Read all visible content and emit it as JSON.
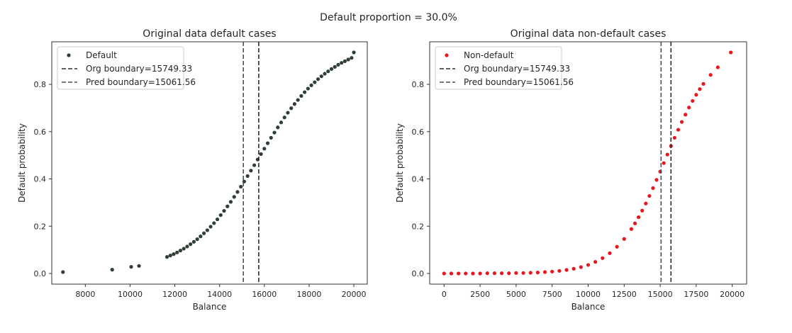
{
  "suptitle": "Default proportion = 30.0%",
  "chart_data": [
    {
      "type": "scatter",
      "title": "Original data default cases",
      "xlabel": "Balance",
      "ylabel": "Default probability",
      "xlim": [
        6500,
        20600
      ],
      "ylim": [
        -0.045,
        0.98
      ],
      "xticks": [
        8000,
        10000,
        12000,
        14000,
        16000,
        18000,
        20000
      ],
      "yticks": [
        0.0,
        0.2,
        0.4,
        0.6,
        0.8
      ],
      "grid": false,
      "legend_position": "top-left",
      "legend": [
        {
          "label": "Default",
          "kind": "marker"
        },
        {
          "label": "Org boundary=15749.33",
          "kind": "dashed-line"
        },
        {
          "label": "Pred boundary=15061.56",
          "kind": "dashed-line"
        }
      ],
      "series": [
        {
          "name": "Default",
          "color": "#2f3f34",
          "x": [
            7000,
            9200,
            10050,
            10400,
            11650,
            11800,
            11950,
            12100,
            12250,
            12400,
            12550,
            12700,
            12850,
            13000,
            13150,
            13300,
            13450,
            13600,
            13750,
            13900,
            14050,
            14200,
            14350,
            14500,
            14650,
            14800,
            14950,
            15100,
            15250,
            15400,
            15550,
            15700,
            15850,
            16000,
            16150,
            16300,
            16450,
            16600,
            16750,
            16900,
            17050,
            17200,
            17350,
            17500,
            17650,
            17800,
            17950,
            18100,
            18250,
            18400,
            18550,
            18700,
            18850,
            19000,
            19150,
            19300,
            19450,
            19600,
            19750,
            19900,
            20000
          ],
          "y": [
            0.006,
            0.016,
            0.028,
            0.032,
            0.07,
            0.076,
            0.082,
            0.089,
            0.097,
            0.105,
            0.114,
            0.124,
            0.134,
            0.145,
            0.157,
            0.17,
            0.183,
            0.198,
            0.213,
            0.229,
            0.247,
            0.265,
            0.284,
            0.303,
            0.324,
            0.345,
            0.367,
            0.389,
            0.412,
            0.435,
            0.458,
            0.482,
            0.505,
            0.528,
            0.551,
            0.574,
            0.596,
            0.618,
            0.639,
            0.66,
            0.68,
            0.699,
            0.717,
            0.734,
            0.751,
            0.767,
            0.782,
            0.796,
            0.809,
            0.822,
            0.834,
            0.845,
            0.855,
            0.865,
            0.874,
            0.883,
            0.891,
            0.898,
            0.905,
            0.912,
            0.935
          ]
        }
      ],
      "vlines": [
        {
          "name": "Org boundary=15749.33",
          "x": 15749.33,
          "color": "#2b2b2b"
        },
        {
          "name": "Pred boundary=15061.56",
          "x": 15061.56,
          "color": "#4a4f5c"
        }
      ]
    },
    {
      "type": "scatter",
      "title": "Original data non-default cases",
      "xlabel": "Balance",
      "ylabel": "Default probability",
      "xlim": [
        -1000,
        21000
      ],
      "ylim": [
        -0.045,
        0.98
      ],
      "xticks": [
        0,
        2500,
        5000,
        7500,
        10000,
        12500,
        15000,
        17500,
        20000
      ],
      "yticks": [
        0.0,
        0.2,
        0.4,
        0.6,
        0.8
      ],
      "grid": false,
      "legend_position": "top-left",
      "legend": [
        {
          "label": "Non-default",
          "kind": "marker"
        },
        {
          "label": "Org boundary=15749.33",
          "kind": "dashed-line"
        },
        {
          "label": "Pred boundary=15061.56",
          "kind": "dashed-line"
        }
      ],
      "series": [
        {
          "name": "Non-default",
          "color": "#e8171c",
          "x": [
            0,
            500,
            1000,
            1500,
            2000,
            2500,
            3000,
            3500,
            4000,
            4500,
            5000,
            5500,
            6000,
            6500,
            7000,
            7500,
            8000,
            8500,
            9000,
            9500,
            10000,
            10500,
            11000,
            11500,
            12000,
            12500,
            13000,
            13250,
            13500,
            13750,
            14000,
            14250,
            14500,
            14750,
            15000,
            15250,
            15500,
            15750,
            16000,
            16250,
            16500,
            16750,
            17000,
            17250,
            17500,
            17750,
            18000,
            18500,
            19000,
            19900
          ],
          "y": [
            0.0,
            0.0,
            0.0,
            0.0,
            0.0,
            0.0,
            0.001,
            0.001,
            0.001,
            0.001,
            0.002,
            0.002,
            0.003,
            0.004,
            0.006,
            0.008,
            0.011,
            0.015,
            0.02,
            0.027,
            0.036,
            0.049,
            0.065,
            0.086,
            0.113,
            0.146,
            0.188,
            0.212,
            0.238,
            0.266,
            0.296,
            0.328,
            0.361,
            0.396,
            0.431,
            0.467,
            0.503,
            0.539,
            0.574,
            0.608,
            0.641,
            0.672,
            0.702,
            0.73,
            0.756,
            0.78,
            0.802,
            0.84,
            0.872,
            0.935
          ]
        }
      ],
      "vlines": [
        {
          "name": "Org boundary=15749.33",
          "x": 15749.33,
          "color": "#2b2b2b"
        },
        {
          "name": "Pred boundary=15061.56",
          "x": 15061.56,
          "color": "#4a4f5c"
        }
      ]
    }
  ]
}
